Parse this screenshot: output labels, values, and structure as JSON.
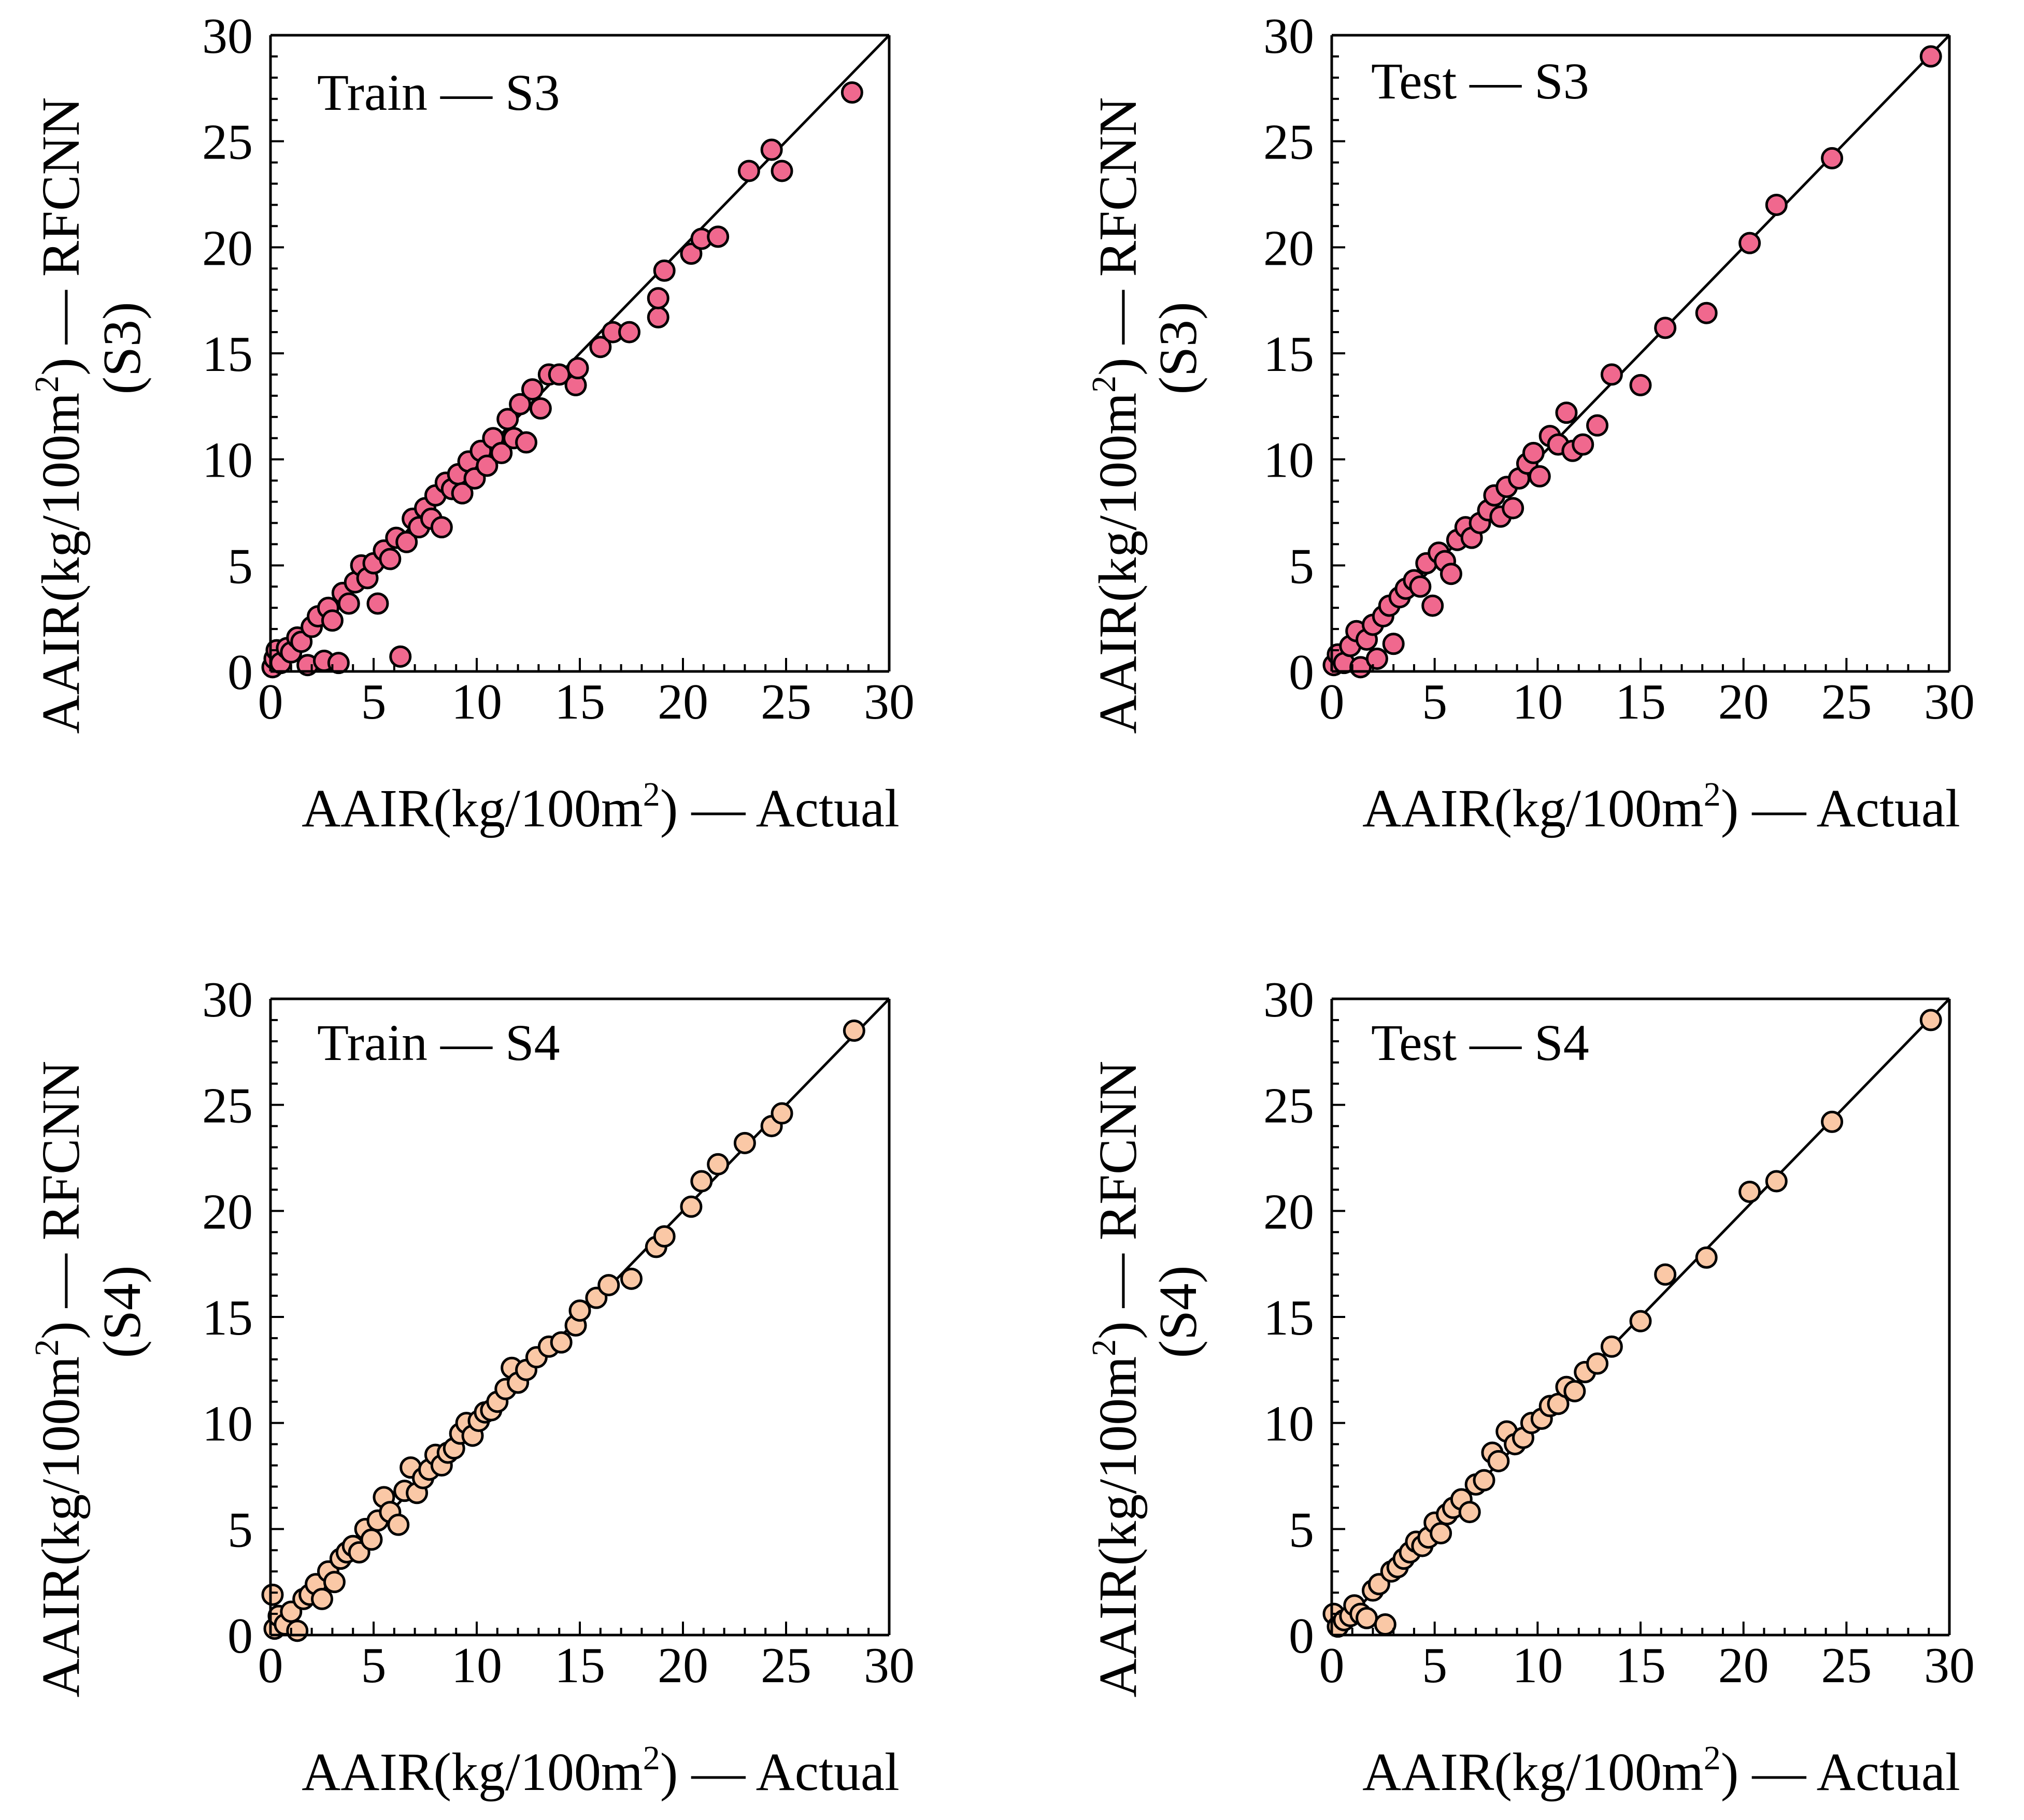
{
  "chart_data": [
    {
      "type": "scatter",
      "panel_label": "Train — S3",
      "xlabel": {
        "main": "AAIR(kg/100m",
        "sup": "2",
        "tail": ") — Actual"
      },
      "ylabel": {
        "line1_main": "AAIR(kg/100m",
        "line1_sup": "2",
        "line1_tail": ") — RFCNN",
        "line2": "(S3)"
      },
      "xlim": [
        0,
        30
      ],
      "ylim": [
        0,
        30
      ],
      "xticks": [
        "0",
        "5",
        "10",
        "15",
        "20",
        "25",
        "30"
      ],
      "yticks": [
        "0",
        "5",
        "10",
        "15",
        "20",
        "25",
        "30"
      ],
      "reference_line": "y = x",
      "marker_color": "#f0688e",
      "points": [
        [
          0.1,
          0.2
        ],
        [
          0.2,
          0.6
        ],
        [
          0.3,
          1.0
        ],
        [
          0.5,
          0.4
        ],
        [
          0.8,
          1.1
        ],
        [
          1.0,
          0.9
        ],
        [
          1.3,
          1.6
        ],
        [
          1.5,
          1.4
        ],
        [
          1.8,
          0.3
        ],
        [
          2.0,
          2.1
        ],
        [
          2.3,
          2.6
        ],
        [
          2.6,
          0.5
        ],
        [
          2.8,
          3.0
        ],
        [
          3.0,
          2.4
        ],
        [
          3.3,
          0.4
        ],
        [
          3.5,
          3.7
        ],
        [
          3.8,
          3.2
        ],
        [
          4.1,
          4.2
        ],
        [
          4.4,
          5.0
        ],
        [
          4.7,
          4.4
        ],
        [
          5.0,
          5.1
        ],
        [
          5.2,
          3.2
        ],
        [
          5.5,
          5.7
        ],
        [
          5.8,
          5.3
        ],
        [
          6.1,
          6.3
        ],
        [
          6.3,
          0.7
        ],
        [
          6.6,
          6.1
        ],
        [
          6.9,
          7.2
        ],
        [
          7.2,
          6.8
        ],
        [
          7.5,
          7.7
        ],
        [
          7.8,
          7.2
        ],
        [
          8.0,
          8.3
        ],
        [
          8.3,
          6.8
        ],
        [
          8.5,
          8.9
        ],
        [
          8.8,
          8.6
        ],
        [
          9.1,
          9.3
        ],
        [
          9.3,
          8.4
        ],
        [
          9.6,
          9.9
        ],
        [
          9.9,
          9.1
        ],
        [
          10.2,
          10.4
        ],
        [
          10.5,
          9.7
        ],
        [
          10.8,
          11.0
        ],
        [
          11.2,
          10.3
        ],
        [
          11.5,
          11.9
        ],
        [
          11.8,
          11.0
        ],
        [
          12.1,
          12.6
        ],
        [
          12.4,
          10.8
        ],
        [
          12.7,
          13.3
        ],
        [
          13.1,
          12.4
        ],
        [
          13.5,
          14.0
        ],
        [
          14.0,
          14.0
        ],
        [
          14.8,
          13.5
        ],
        [
          14.9,
          14.3
        ],
        [
          16.0,
          15.3
        ],
        [
          16.6,
          16.0
        ],
        [
          17.4,
          16.0
        ],
        [
          18.8,
          16.7
        ],
        [
          18.8,
          17.6
        ],
        [
          19.1,
          18.9
        ],
        [
          20.4,
          19.7
        ],
        [
          20.9,
          20.4
        ],
        [
          21.7,
          20.5
        ],
        [
          23.2,
          23.6
        ],
        [
          24.3,
          24.6
        ],
        [
          24.8,
          23.6
        ],
        [
          28.2,
          27.3
        ]
      ]
    },
    {
      "type": "scatter",
      "panel_label": "Test — S3",
      "xlabel": {
        "main": "AAIR(kg/100m",
        "sup": "2",
        "tail": ") — Actual"
      },
      "ylabel": {
        "line1_main": "AAIR(kg/100m",
        "line1_sup": "2",
        "line1_tail": ") — RFCNN",
        "line2": "(S3)"
      },
      "xlim": [
        0,
        30
      ],
      "ylim": [
        0,
        30
      ],
      "xticks": [
        "0",
        "5",
        "10",
        "15",
        "20",
        "25",
        "30"
      ],
      "yticks": [
        "0",
        "5",
        "10",
        "15",
        "20",
        "25",
        "30"
      ],
      "reference_line": "y = x",
      "marker_color": "#f0688e",
      "points": [
        [
          0.1,
          0.3
        ],
        [
          0.3,
          0.8
        ],
        [
          0.6,
          0.4
        ],
        [
          0.9,
          1.2
        ],
        [
          1.2,
          1.9
        ],
        [
          1.4,
          0.2
        ],
        [
          1.7,
          1.5
        ],
        [
          2.0,
          2.2
        ],
        [
          2.2,
          0.6
        ],
        [
          2.5,
          2.6
        ],
        [
          2.8,
          3.1
        ],
        [
          3.0,
          1.3
        ],
        [
          3.3,
          3.5
        ],
        [
          3.6,
          3.9
        ],
        [
          4.0,
          4.3
        ],
        [
          4.3,
          4.0
        ],
        [
          4.6,
          5.1
        ],
        [
          4.9,
          3.1
        ],
        [
          5.2,
          5.6
        ],
        [
          5.5,
          5.2
        ],
        [
          5.8,
          4.6
        ],
        [
          6.1,
          6.2
        ],
        [
          6.5,
          6.8
        ],
        [
          6.8,
          6.3
        ],
        [
          7.2,
          7.0
        ],
        [
          7.6,
          7.6
        ],
        [
          7.9,
          8.3
        ],
        [
          8.2,
          7.3
        ],
        [
          8.5,
          8.7
        ],
        [
          8.8,
          7.7
        ],
        [
          9.1,
          9.1
        ],
        [
          9.5,
          9.8
        ],
        [
          9.8,
          10.3
        ],
        [
          10.1,
          9.2
        ],
        [
          10.6,
          11.1
        ],
        [
          11.0,
          10.7
        ],
        [
          11.4,
          12.2
        ],
        [
          11.7,
          10.4
        ],
        [
          12.2,
          10.7
        ],
        [
          12.9,
          11.6
        ],
        [
          13.6,
          14.0
        ],
        [
          15.0,
          13.5
        ],
        [
          16.2,
          16.2
        ],
        [
          18.2,
          16.9
        ],
        [
          20.3,
          20.2
        ],
        [
          21.6,
          22.0
        ],
        [
          24.3,
          24.2
        ],
        [
          29.1,
          29.0
        ]
      ]
    },
    {
      "type": "scatter",
      "panel_label": "Train — S4",
      "xlabel": {
        "main": "AAIR(kg/100m",
        "sup": "2",
        "tail": ") — Actual"
      },
      "ylabel": {
        "line1_main": "AAIR(kg/100m",
        "line1_sup": "2",
        "line1_tail": ") — RFCNN",
        "line2": "(S4)"
      },
      "xlim": [
        0,
        30
      ],
      "ylim": [
        0,
        30
      ],
      "xticks": [
        "0",
        "5",
        "10",
        "15",
        "20",
        "25",
        "30"
      ],
      "yticks": [
        "0",
        "5",
        "10",
        "15",
        "20",
        "25",
        "30"
      ],
      "reference_line": "y = x",
      "marker_color": "#fac8a6",
      "points": [
        [
          0.1,
          1.9
        ],
        [
          0.2,
          0.3
        ],
        [
          0.4,
          0.9
        ],
        [
          0.7,
          0.5
        ],
        [
          1.0,
          1.1
        ],
        [
          1.3,
          0.2
        ],
        [
          1.6,
          1.7
        ],
        [
          1.9,
          1.9
        ],
        [
          2.2,
          2.4
        ],
        [
          2.5,
          1.7
        ],
        [
          2.8,
          3.0
        ],
        [
          3.1,
          2.5
        ],
        [
          3.4,
          3.6
        ],
        [
          3.7,
          3.9
        ],
        [
          4.0,
          4.2
        ],
        [
          4.3,
          3.9
        ],
        [
          4.6,
          5.0
        ],
        [
          4.9,
          4.5
        ],
        [
          5.2,
          5.4
        ],
        [
          5.5,
          6.5
        ],
        [
          5.8,
          5.8
        ],
        [
          6.2,
          5.2
        ],
        [
          6.5,
          6.8
        ],
        [
          6.8,
          7.9
        ],
        [
          7.1,
          6.7
        ],
        [
          7.4,
          7.4
        ],
        [
          7.7,
          7.8
        ],
        [
          8.0,
          8.5
        ],
        [
          8.3,
          8.0
        ],
        [
          8.6,
          8.6
        ],
        [
          8.9,
          8.8
        ],
        [
          9.2,
          9.5
        ],
        [
          9.5,
          10.0
        ],
        [
          9.8,
          9.4
        ],
        [
          10.1,
          10.1
        ],
        [
          10.4,
          10.5
        ],
        [
          10.7,
          10.6
        ],
        [
          11.0,
          11.0
        ],
        [
          11.4,
          11.6
        ],
        [
          11.7,
          12.6
        ],
        [
          12.0,
          11.9
        ],
        [
          12.4,
          12.5
        ],
        [
          12.9,
          13.1
        ],
        [
          13.5,
          13.6
        ],
        [
          14.1,
          13.8
        ],
        [
          14.8,
          14.6
        ],
        [
          15.0,
          15.3
        ],
        [
          15.8,
          15.9
        ],
        [
          16.4,
          16.5
        ],
        [
          17.5,
          16.8
        ],
        [
          18.7,
          18.3
        ],
        [
          19.1,
          18.8
        ],
        [
          20.4,
          20.2
        ],
        [
          20.9,
          21.4
        ],
        [
          21.7,
          22.2
        ],
        [
          23.0,
          23.2
        ],
        [
          24.3,
          24.0
        ],
        [
          24.8,
          24.6
        ],
        [
          28.3,
          28.5
        ]
      ]
    },
    {
      "type": "scatter",
      "panel_label": "Test — S4",
      "xlabel": {
        "main": "AAIR(kg/100m",
        "sup": "2",
        "tail": ") — Actual"
      },
      "ylabel": {
        "line1_main": "AAIR(kg/100m",
        "line1_sup": "2",
        "line1_tail": ") — RFCNN",
        "line2": "(S4)"
      },
      "xlim": [
        0,
        30
      ],
      "ylim": [
        0,
        30
      ],
      "xticks": [
        "0",
        "5",
        "10",
        "15",
        "20",
        "25",
        "30"
      ],
      "yticks": [
        "0",
        "5",
        "10",
        "15",
        "20",
        "25",
        "30"
      ],
      "reference_line": "y = x",
      "marker_color": "#fac8a6",
      "points": [
        [
          0.1,
          1.0
        ],
        [
          0.3,
          0.4
        ],
        [
          0.6,
          0.7
        ],
        [
          0.9,
          0.9
        ],
        [
          1.1,
          1.4
        ],
        [
          1.4,
          1.0
        ],
        [
          1.7,
          0.8
        ],
        [
          2.0,
          2.1
        ],
        [
          2.3,
          2.4
        ],
        [
          2.6,
          0.5
        ],
        [
          2.9,
          3.0
        ],
        [
          3.2,
          3.2
        ],
        [
          3.5,
          3.6
        ],
        [
          3.8,
          3.9
        ],
        [
          4.1,
          4.4
        ],
        [
          4.4,
          4.2
        ],
        [
          4.7,
          4.6
        ],
        [
          5.0,
          5.3
        ],
        [
          5.3,
          4.8
        ],
        [
          5.6,
          5.7
        ],
        [
          5.9,
          6.0
        ],
        [
          6.3,
          6.4
        ],
        [
          6.7,
          5.8
        ],
        [
          7.0,
          7.1
        ],
        [
          7.4,
          7.3
        ],
        [
          7.8,
          8.6
        ],
        [
          8.1,
          8.2
        ],
        [
          8.5,
          9.6
        ],
        [
          8.9,
          9.0
        ],
        [
          9.3,
          9.3
        ],
        [
          9.7,
          10.0
        ],
        [
          10.2,
          10.2
        ],
        [
          10.6,
          10.8
        ],
        [
          11.0,
          10.9
        ],
        [
          11.4,
          11.7
        ],
        [
          11.8,
          11.5
        ],
        [
          12.3,
          12.4
        ],
        [
          12.9,
          12.8
        ],
        [
          13.6,
          13.6
        ],
        [
          15.0,
          14.8
        ],
        [
          16.2,
          17.0
        ],
        [
          18.2,
          17.8
        ],
        [
          20.3,
          20.9
        ],
        [
          21.6,
          21.4
        ],
        [
          24.3,
          24.2
        ],
        [
          29.1,
          29.0
        ]
      ]
    }
  ]
}
